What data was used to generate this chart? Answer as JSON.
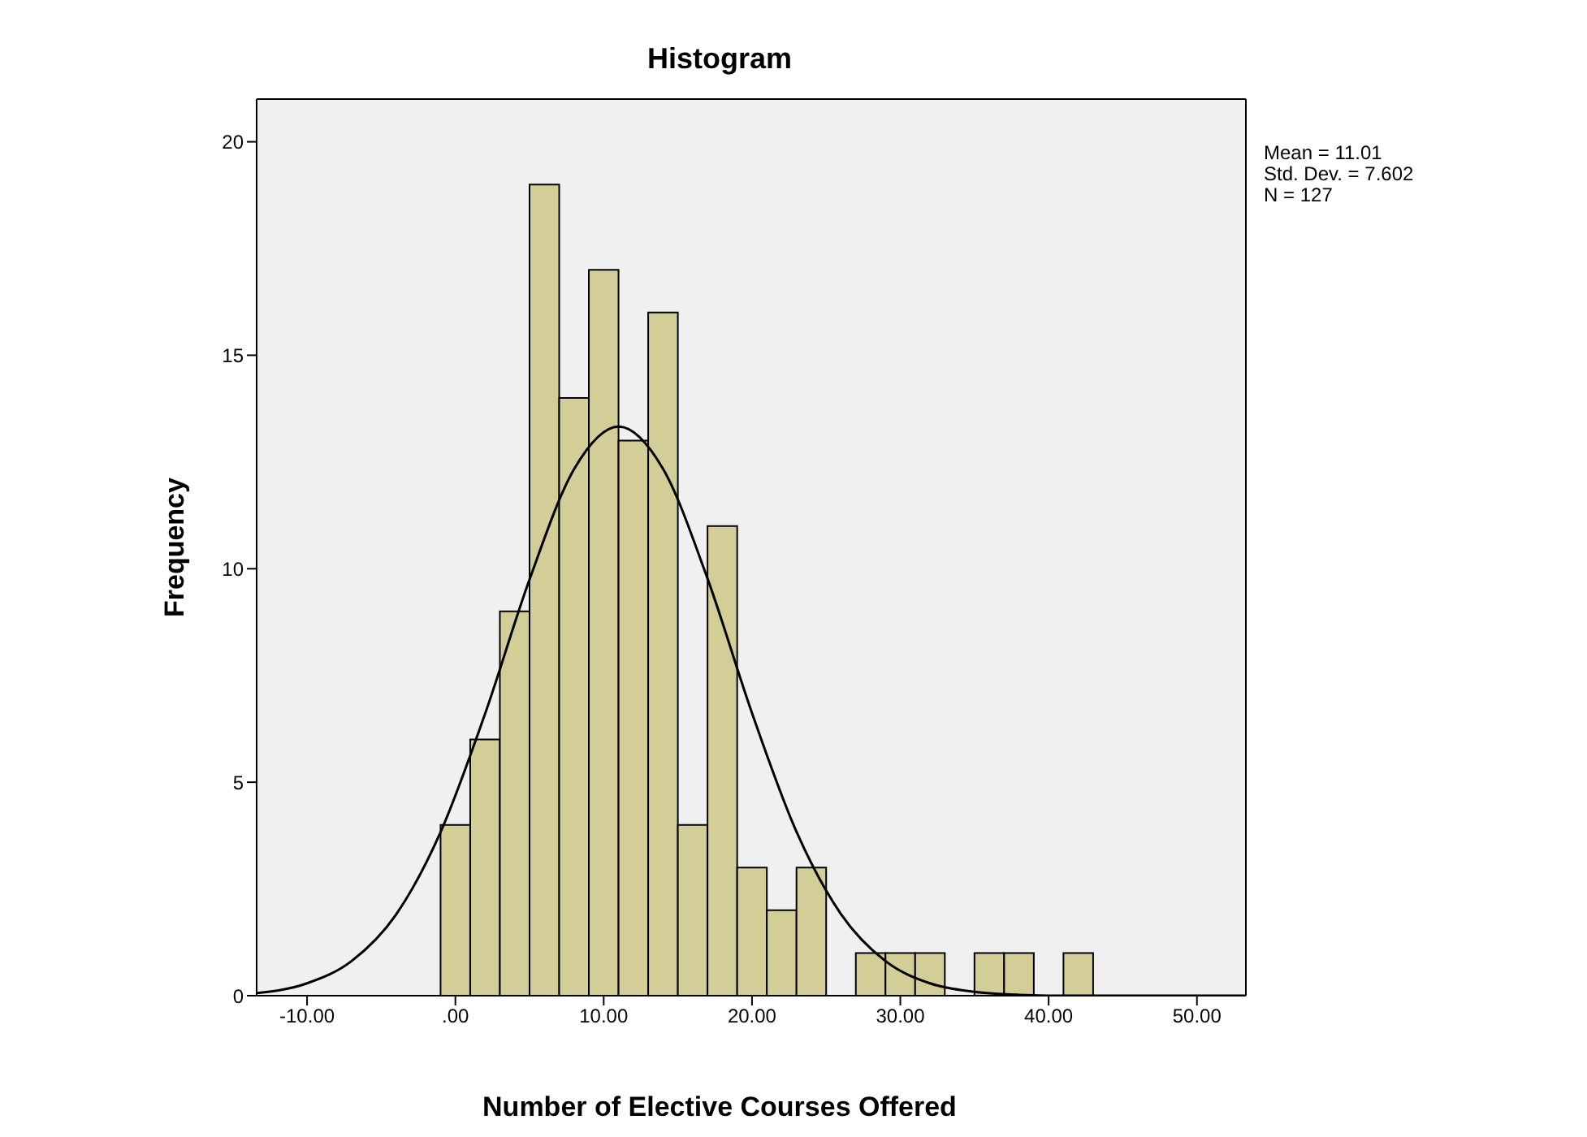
{
  "chart_data": {
    "type": "histogram",
    "title": "Histogram",
    "xlabel": "Number of Elective Courses Offered",
    "ylabel": "Frequency",
    "bins": [
      -1,
      1,
      3,
      5,
      7,
      9,
      11,
      13,
      15,
      17,
      19,
      21,
      23,
      25,
      27,
      29,
      31,
      33,
      35,
      37,
      39,
      41,
      43
    ],
    "values": [
      4,
      6,
      9,
      19,
      14,
      17,
      13,
      16,
      4,
      11,
      3,
      2,
      3,
      0,
      1,
      1,
      1,
      0,
      1,
      1,
      0,
      1
    ],
    "color": "#d3ce97",
    "series": [
      {
        "type": "line",
        "color": "#000000",
        "x": [
          -13.4,
          -10,
          -7,
          -4,
          -1,
          2,
          5,
          8,
          11.01,
          14,
          17,
          20,
          23,
          26,
          29,
          32,
          35,
          38,
          41,
          44,
          50,
          53.3
        ],
        "values": [
          0.06,
          0.29,
          0.81,
          1.9,
          3.83,
          6.6,
          9.75,
          12.33,
          13.33,
          12.34,
          9.77,
          6.62,
          3.84,
          1.91,
          0.81,
          0.29,
          0.09,
          0.02,
          0,
          0,
          0,
          0
        ]
      }
    ],
    "xlim": [
      -13.4,
      53.3
    ],
    "xticks": [
      {
        "value": -10,
        "label": "-10.00"
      },
      {
        "value": 0,
        "label": ".00"
      },
      {
        "value": 10,
        "label": "10.00"
      },
      {
        "value": 20,
        "label": "20.00"
      },
      {
        "value": 30,
        "label": "30.00"
      },
      {
        "value": 40,
        "label": "40.00"
      },
      {
        "value": 50,
        "label": "50.00"
      }
    ],
    "ylim": [
      0,
      21
    ],
    "yticks": [
      0,
      5,
      10,
      15,
      20
    ],
    "grid": false,
    "annotations": [
      "Mean = 11.01",
      "Std. Dev. = 7.602",
      "N = 127"
    ]
  }
}
